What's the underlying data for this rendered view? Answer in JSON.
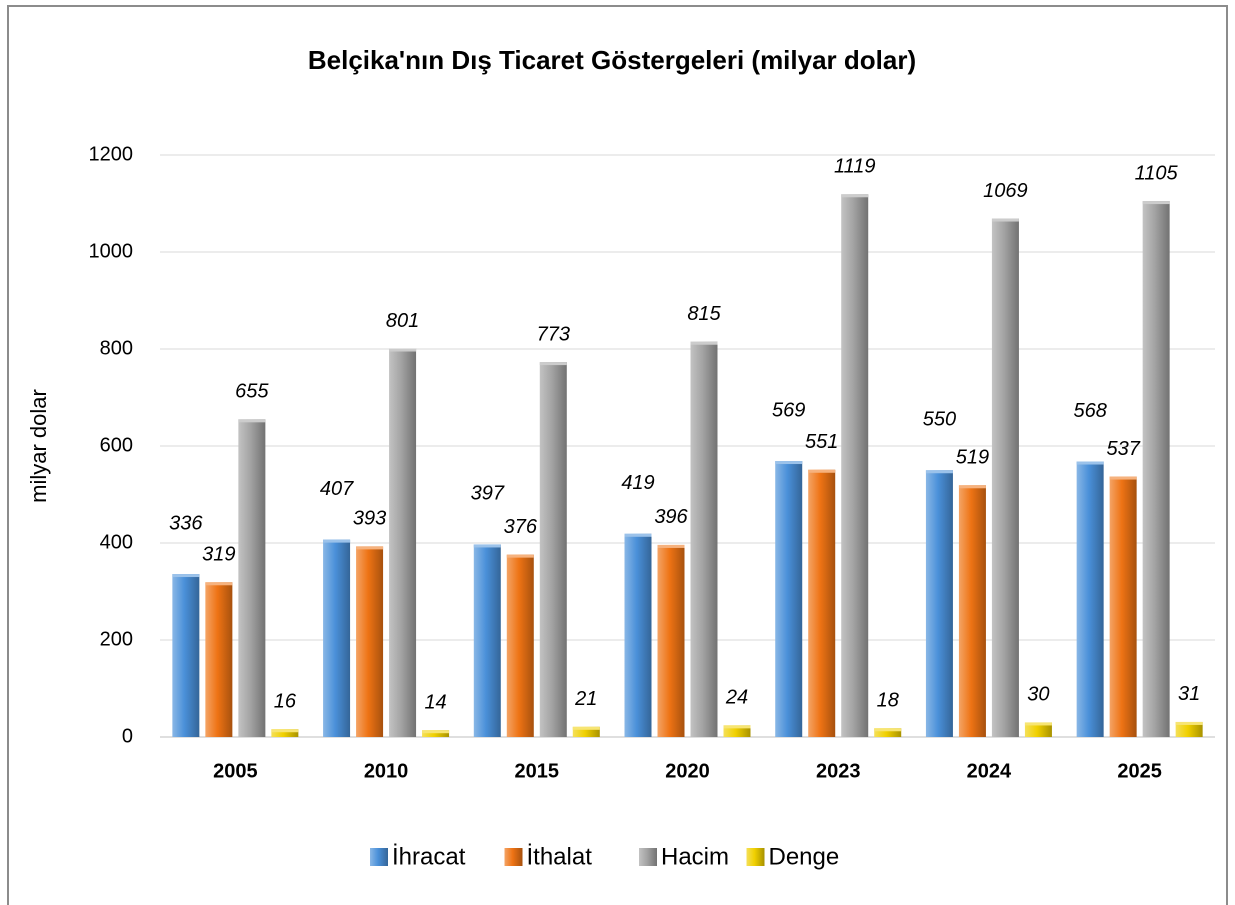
{
  "chart_data": {
    "type": "bar",
    "title": "Belçika'nın Dış Ticaret Göstergeleri (milyar dolar)",
    "y_label": "milyar dolar",
    "categories": [
      "2005",
      "2010",
      "2015",
      "2020",
      "2023",
      "2024",
      "2025"
    ],
    "series": [
      {
        "name": "İhracat",
        "color": "#4a90d9",
        "values": [
          336,
          407,
          397,
          419,
          569,
          550,
          568
        ]
      },
      {
        "name": "İthalat",
        "color": "#ee7314",
        "values": [
          319,
          393,
          376,
          396,
          551,
          519,
          537
        ]
      },
      {
        "name": "Hacim",
        "color": "#a3a3a3",
        "values": [
          655,
          801,
          773,
          815,
          1119,
          1069,
          1105
        ]
      },
      {
        "name": "Denge",
        "color": "#f0d000",
        "values": [
          16,
          14,
          21,
          24,
          18,
          30,
          31
        ]
      }
    ],
    "ylim": [
      0,
      1200
    ],
    "yticks": [
      0,
      200,
      400,
      600,
      800,
      1000,
      1200
    ],
    "grid": true,
    "legend": "bottom"
  }
}
